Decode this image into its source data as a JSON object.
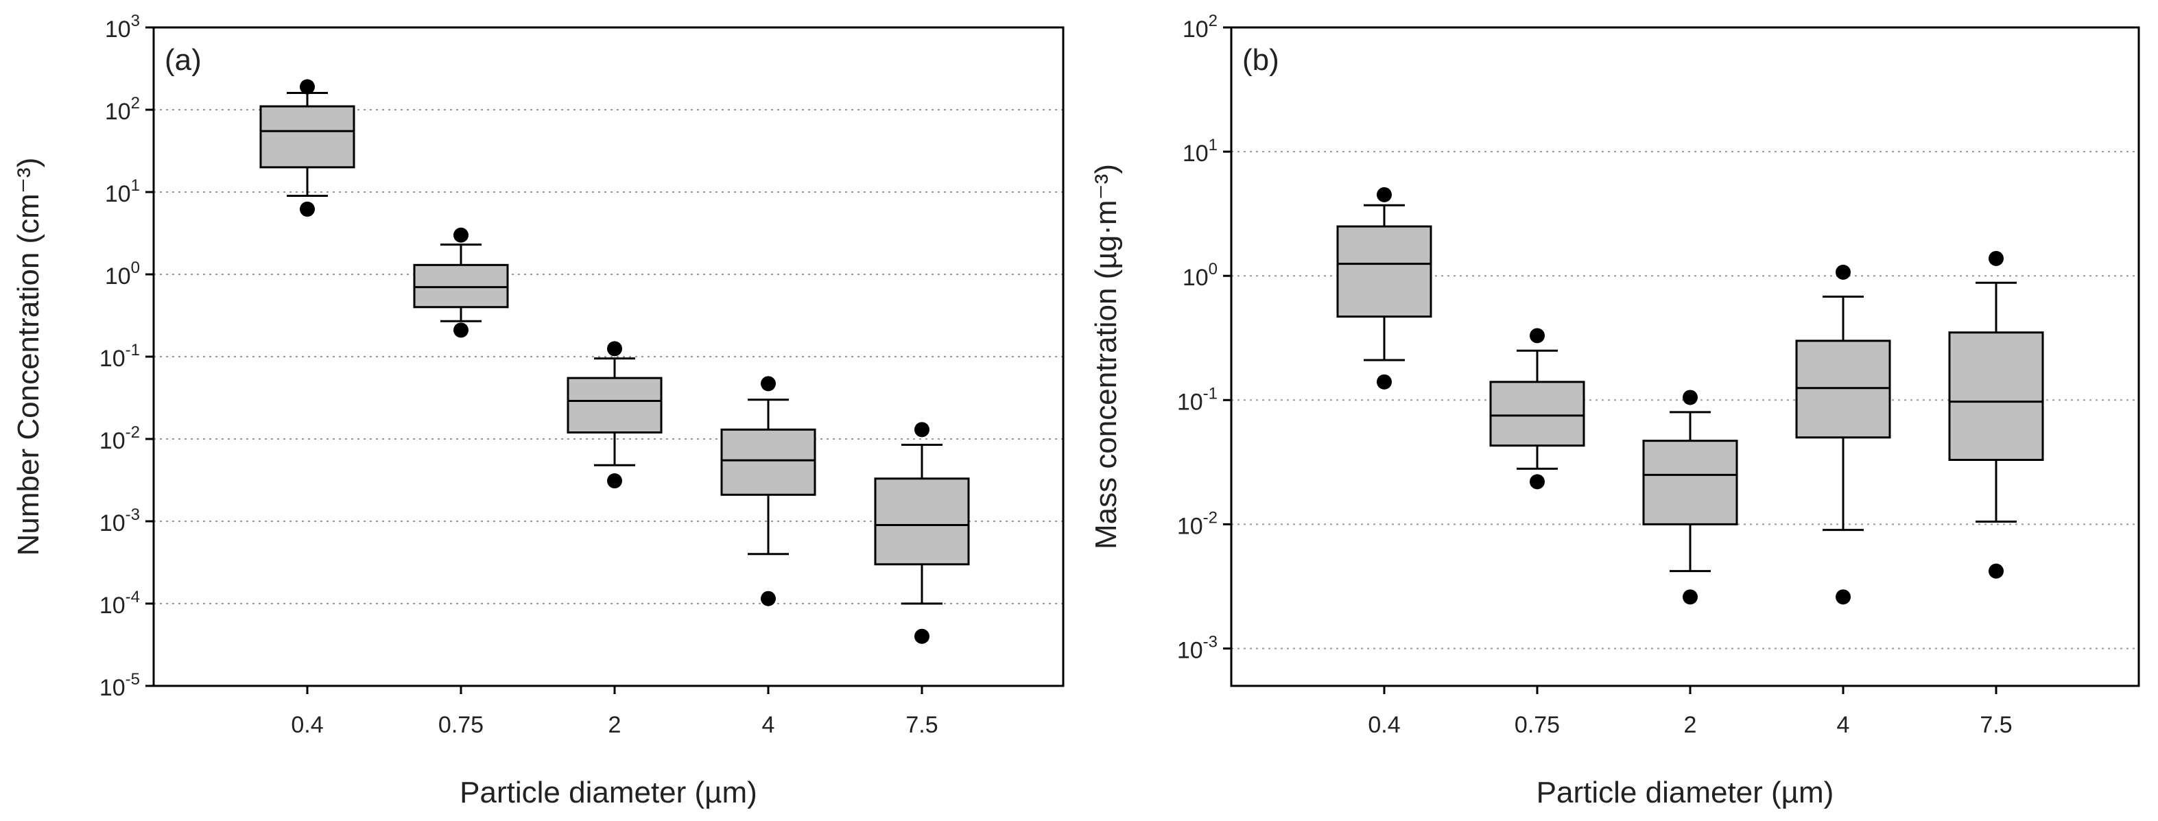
{
  "chart_data": [
    {
      "type": "box",
      "panel_label": "(a)",
      "xlabel": "Particle diameter (µm)",
      "ylabel": "Number Concentration (cm⁻³)",
      "y_scale": "log",
      "ylim": [
        1e-05,
        1000
      ],
      "y_ticks": [
        1e-05,
        0.0001,
        0.001,
        0.01,
        0.1,
        1,
        10,
        100,
        1000
      ],
      "y_tick_labels": [
        {
          "base": "10",
          "exp": "-5"
        },
        {
          "base": "10",
          "exp": "-4"
        },
        {
          "base": "10",
          "exp": "-3"
        },
        {
          "base": "10",
          "exp": "-2"
        },
        {
          "base": "10",
          "exp": "-1"
        },
        {
          "base": "10",
          "exp": "0"
        },
        {
          "base": "10",
          "exp": "1"
        },
        {
          "base": "10",
          "exp": "2"
        },
        {
          "base": "10",
          "exp": "3"
        }
      ],
      "grid": "horizontal dotted",
      "box_fill": "#c0c0c0",
      "categories": [
        "0.4",
        "0.75",
        "2",
        "4",
        "7.5"
      ],
      "boxes": [
        {
          "whisker_low": 9,
          "q1": 20,
          "median": 55,
          "q3": 110,
          "whisker_high": 160,
          "outliers": [
            6.2,
            190
          ]
        },
        {
          "whisker_low": 0.27,
          "q1": 0.4,
          "median": 0.7,
          "q3": 1.3,
          "whisker_high": 2.3,
          "outliers": [
            0.21,
            3.0
          ]
        },
        {
          "whisker_low": 0.0048,
          "q1": 0.012,
          "median": 0.029,
          "q3": 0.055,
          "whisker_high": 0.095,
          "outliers": [
            0.0031,
            0.125
          ]
        },
        {
          "whisker_low": 0.0004,
          "q1": 0.0021,
          "median": 0.0055,
          "q3": 0.013,
          "whisker_high": 0.03,
          "outliers": [
            0.000115,
            0.047
          ]
        },
        {
          "whisker_low": 0.0001,
          "q1": 0.0003,
          "median": 0.0009,
          "q3": 0.0033,
          "whisker_high": 0.0085,
          "outliers": [
            4e-05,
            0.013
          ]
        }
      ]
    },
    {
      "type": "box",
      "panel_label": "(b)",
      "xlabel": "Particle diameter (µm)",
      "ylabel": "Mass concentration (µg·m⁻³)",
      "y_scale": "log",
      "ylim": [
        0.0005,
        100
      ],
      "y_ticks": [
        0.001,
        0.01,
        0.1,
        1,
        10,
        100
      ],
      "y_tick_labels": [
        {
          "base": "10",
          "exp": "-3"
        },
        {
          "base": "10",
          "exp": "-2"
        },
        {
          "base": "10",
          "exp": "-1"
        },
        {
          "base": "10",
          "exp": "0"
        },
        {
          "base": "10",
          "exp": "1"
        },
        {
          "base": "10",
          "exp": "2"
        }
      ],
      "grid": "horizontal dotted",
      "box_fill": "#c0c0c0",
      "categories": [
        "0.4",
        "0.75",
        "2",
        "4",
        "7.5"
      ],
      "boxes": [
        {
          "whisker_low": 0.21,
          "q1": 0.47,
          "median": 1.25,
          "q3": 2.5,
          "whisker_high": 3.7,
          "outliers": [
            0.14,
            4.5
          ]
        },
        {
          "whisker_low": 0.028,
          "q1": 0.043,
          "median": 0.075,
          "q3": 0.14,
          "whisker_high": 0.25,
          "outliers": [
            0.022,
            0.33
          ]
        },
        {
          "whisker_low": 0.0042,
          "q1": 0.01,
          "median": 0.025,
          "q3": 0.047,
          "whisker_high": 0.08,
          "outliers": [
            0.0026,
            0.105
          ]
        },
        {
          "whisker_low": 0.009,
          "q1": 0.05,
          "median": 0.125,
          "q3": 0.3,
          "whisker_high": 0.68,
          "outliers": [
            0.0026,
            1.07
          ]
        },
        {
          "whisker_low": 0.0105,
          "q1": 0.033,
          "median": 0.097,
          "q3": 0.35,
          "whisker_high": 0.88,
          "outliers": [
            0.0042,
            1.38
          ]
        }
      ]
    }
  ]
}
